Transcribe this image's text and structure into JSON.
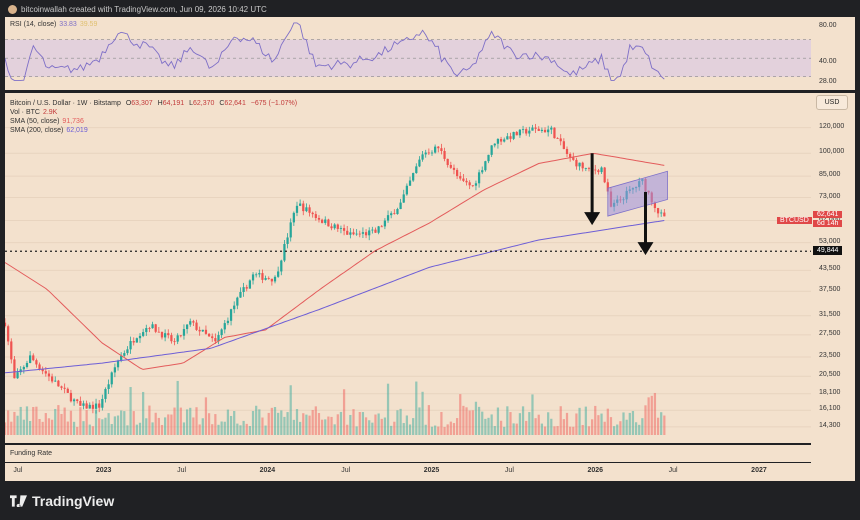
{
  "header": {
    "text": "bitcoinwallah created with TradingView.com, Jun 09, 2026 10:42 UTC"
  },
  "rsi": {
    "title": "RSI (14, close)",
    "value": "33.83",
    "ma_value": "39.59",
    "scale_labels": [
      "80.00",
      "40.00",
      "28.00"
    ],
    "band_upper": 70,
    "band_lower": 30,
    "band_mid": 50,
    "range": [
      20,
      90
    ],
    "line_color": "#7e6fc7"
  },
  "legend": {
    "title": "Bitcoin / U.S. Dollar · 1W · Bitstamp",
    "o_label": "O",
    "o_value": "63,307",
    "h_label": "H",
    "h_value": "64,191",
    "l_label": "L",
    "l_value": "62,370",
    "c_label": "C",
    "c_value": "62,641",
    "chg": "−675 (−1.07%)",
    "vol_label": "Vol · BTC",
    "vol_value": "2.9K",
    "sma50_label": "SMA (50, close)",
    "sma50_value": "91,736",
    "sma200_label": "SMA (200, close)",
    "sma200_value": "62,019"
  },
  "price_scale": {
    "currency": "USD",
    "ticks": [
      "120,000",
      "100,000",
      "85,000",
      "73,000",
      "62,000",
      "53,000",
      "43,500",
      "37,500",
      "31,500",
      "27,500",
      "23,500",
      "20,500",
      "18,100",
      "16,100",
      "14,300"
    ],
    "level_label": "49,844",
    "symbol_label": "BTCUSD",
    "last_price": "62,641",
    "countdown": "6d 14h"
  },
  "funding": {
    "label": "Funding Rate"
  },
  "time_axis": {
    "labels": [
      "Jul",
      "2023",
      "Jul",
      "2024",
      "Jul",
      "2025",
      "Jul",
      "2026",
      "Jul",
      "2027"
    ],
    "bold": [
      false,
      true,
      false,
      true,
      false,
      true,
      false,
      true,
      false,
      true
    ]
  },
  "footer": {
    "brand": "TradingView"
  },
  "colors": {
    "up": "#26a69a",
    "down": "#ef5350",
    "sma50": "#e35b5b",
    "sma200": "#6d5ed6",
    "channel": "#9b8fe0",
    "background": "#f3e1cd"
  },
  "chart_data": {
    "type": "candlestick",
    "title": "Bitcoin / U.S. Dollar · 1W · Bitstamp",
    "scale": "log",
    "ylim": [
      13500,
      145000
    ],
    "x_start": "2022-05-30",
    "x_end": "2027-05-01",
    "interval": "1W",
    "anchors": [
      [
        "2022-05-30",
        30000
      ],
      [
        "2022-06-20",
        20000
      ],
      [
        "2022-07-25",
        23500
      ],
      [
        "2022-09-12",
        20000
      ],
      [
        "2022-11-14",
        16500
      ],
      [
        "2022-12-26",
        16600
      ],
      [
        "2023-02-06",
        23000
      ],
      [
        "2023-03-20",
        27500
      ],
      [
        "2023-04-17",
        29500
      ],
      [
        "2023-06-12",
        26000
      ],
      [
        "2023-07-17",
        30000
      ],
      [
        "2023-09-11",
        26000
      ],
      [
        "2023-10-23",
        34000
      ],
      [
        "2023-12-04",
        42000
      ],
      [
        "2024-01-22",
        41000
      ],
      [
        "2024-03-11",
        70000
      ],
      [
        "2024-05-06",
        62000
      ],
      [
        "2024-07-08",
        56000
      ],
      [
        "2024-09-02",
        57000
      ],
      [
        "2024-10-28",
        70000
      ],
      [
        "2024-12-16",
        100000
      ],
      [
        "2025-01-20",
        104000
      ],
      [
        "2025-03-10",
        82000
      ],
      [
        "2025-04-07",
        79000
      ],
      [
        "2025-05-26",
        109000
      ],
      [
        "2025-08-11",
        118000
      ],
      [
        "2025-09-29",
        118000
      ],
      [
        "2025-11-10",
        96000
      ],
      [
        "2025-12-22",
        88000
      ],
      [
        "2026-01-19",
        90000
      ],
      [
        "2026-02-09",
        68000
      ],
      [
        "2026-03-16",
        75000
      ],
      [
        "2026-04-20",
        82000
      ],
      [
        "2026-05-25",
        66000
      ],
      [
        "2026-06-08",
        62641
      ]
    ],
    "sma50": [
      [
        "2022-05-30",
        46000
      ],
      [
        "2022-09-01",
        38000
      ],
      [
        "2023-01-01",
        26000
      ],
      [
        "2023-04-01",
        21500
      ],
      [
        "2023-07-01",
        22500
      ],
      [
        "2023-10-01",
        27000
      ],
      [
        "2024-01-01",
        28500
      ],
      [
        "2024-05-01",
        38000
      ],
      [
        "2024-09-01",
        50000
      ],
      [
        "2025-01-01",
        61000
      ],
      [
        "2025-05-01",
        77000
      ],
      [
        "2025-09-01",
        93000
      ],
      [
        "2026-01-01",
        100000
      ],
      [
        "2026-06-08",
        91736
      ]
    ],
    "sma200": [
      [
        "2022-05-30",
        21000
      ],
      [
        "2023-01-01",
        22500
      ],
      [
        "2023-09-01",
        25000
      ],
      [
        "2024-05-01",
        33000
      ],
      [
        "2025-01-01",
        44500
      ],
      [
        "2025-09-01",
        54000
      ],
      [
        "2026-06-08",
        62019
      ]
    ],
    "horizontal_level": 49844,
    "channel": {
      "from": [
        "2026-02-02",
        64000,
        78000
      ],
      "to": [
        "2026-06-15",
        72000,
        88000
      ]
    },
    "arrows": [
      {
        "date": "2025-12-29",
        "from": 100000,
        "to": 60000
      },
      {
        "date": "2026-04-27",
        "from": 76000,
        "to": 48500
      }
    ]
  }
}
